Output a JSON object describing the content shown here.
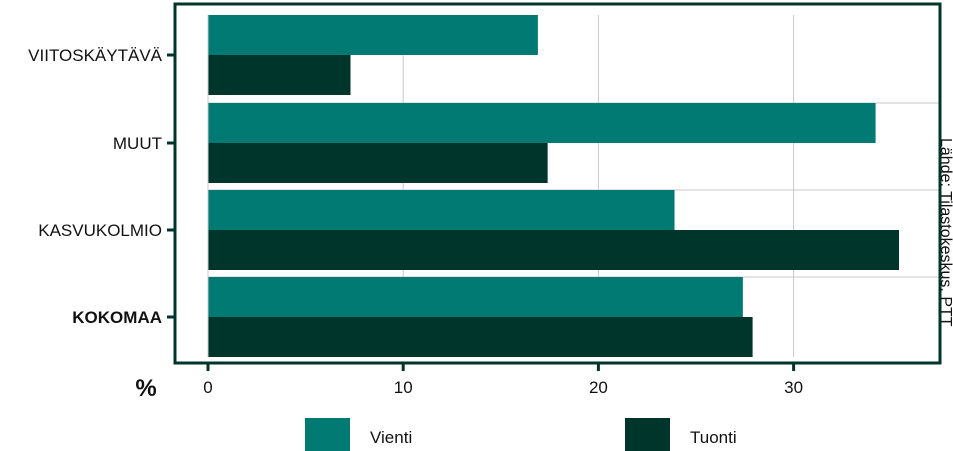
{
  "chart_data": {
    "type": "bar",
    "orientation": "horizontal",
    "categories": [
      "VIITOSKÄYTÄVÄ",
      "MUUT",
      "KASVUKOLMIO",
      "KOKOMAA"
    ],
    "bold_categories": [
      "KOKOMAA"
    ],
    "series": [
      {
        "name": "Vienti",
        "color": "#007a73",
        "values": [
          16.9,
          34.2,
          23.9,
          27.4
        ]
      },
      {
        "name": "Tuonti",
        "color": "#00352b",
        "values": [
          7.3,
          17.4,
          35.4,
          27.9
        ]
      }
    ],
    "xlim": [
      0,
      37
    ],
    "xticks": [
      0,
      10,
      20,
      30
    ],
    "unit_label": "%",
    "grid": true,
    "legend_position": "bottom",
    "frame_color": "#00352b",
    "source": "Lähde: Tilastokeskus, PTT"
  }
}
